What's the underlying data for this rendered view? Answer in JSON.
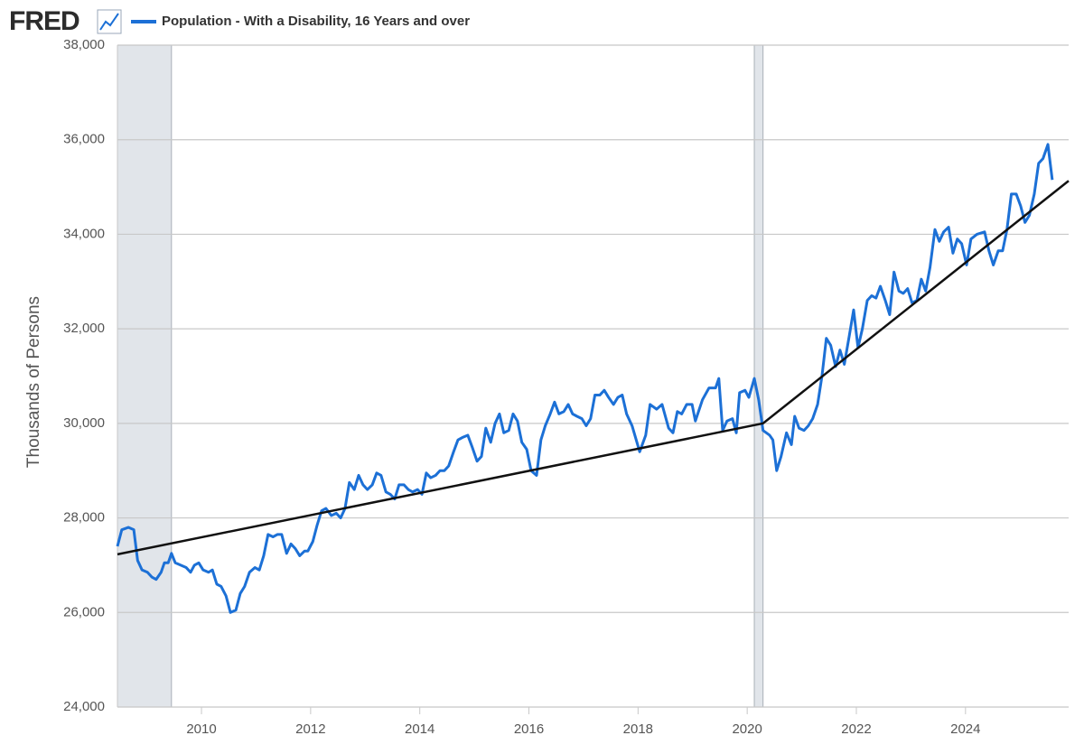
{
  "chart_data": {
    "type": "line",
    "logo": "FRED",
    "y_label": "Thousands of Persons",
    "xlim": [
      2008.46,
      2025.89
    ],
    "xticks": [
      2010,
      2012,
      2014,
      2016,
      2018,
      2020,
      2022,
      2024
    ],
    "ylim": [
      24000,
      38000
    ],
    "yticks": [
      {
        "value": 24000,
        "label": "24,000"
      },
      {
        "value": 26000,
        "label": "26,000"
      },
      {
        "value": 28000,
        "label": "28,000"
      },
      {
        "value": 30000,
        "label": "30,000"
      },
      {
        "value": 32000,
        "label": "32,000"
      },
      {
        "value": 34000,
        "label": "34,000"
      },
      {
        "value": 36000,
        "label": "36,000"
      },
      {
        "value": 38000,
        "label": "38,000"
      }
    ],
    "grid": true,
    "recessions": [
      [
        2007.92,
        2009.45
      ],
      [
        2020.13,
        2020.29
      ]
    ],
    "recession_color": "#e1e5ea",
    "series": [
      {
        "name": "Population - With a Disability, 16 Years and over",
        "color": "#1c70d6",
        "x": [
          2008.46,
          2008.54,
          2008.66,
          2008.76,
          2008.83,
          2008.91,
          2009.01,
          2009.09,
          2009.17,
          2009.26,
          2009.32,
          2009.39,
          2009.45,
          2009.52,
          2009.62,
          2009.72,
          2009.8,
          2009.87,
          2009.95,
          2010.03,
          2010.13,
          2010.2,
          2010.28,
          2010.36,
          2010.45,
          2010.53,
          2010.63,
          2010.71,
          2010.79,
          2010.88,
          2010.98,
          2011.06,
          2011.14,
          2011.22,
          2011.31,
          2011.39,
          2011.47,
          2011.56,
          2011.64,
          2011.72,
          2011.8,
          2011.89,
          2011.95,
          2012.04,
          2012.12,
          2012.2,
          2012.28,
          2012.38,
          2012.47,
          2012.55,
          2012.63,
          2012.71,
          2012.8,
          2012.88,
          2012.96,
          2013.04,
          2013.13,
          2013.21,
          2013.29,
          2013.38,
          2013.46,
          2013.54,
          2013.62,
          2013.71,
          2013.79,
          2013.87,
          2013.96,
          2014.04,
          2014.12,
          2014.2,
          2014.29,
          2014.37,
          2014.45,
          2014.53,
          2014.62,
          2014.7,
          2014.78,
          2014.88,
          2014.96,
          2015.05,
          2015.13,
          2015.21,
          2015.3,
          2015.38,
          2015.46,
          2015.54,
          2015.63,
          2015.71,
          2015.79,
          2015.87,
          2015.96,
          2016.04,
          2016.14,
          2016.22,
          2016.3,
          2016.39,
          2016.47,
          2016.55,
          2016.64,
          2016.72,
          2016.8,
          2016.88,
          2016.97,
          2017.05,
          2017.13,
          2017.21,
          2017.3,
          2017.38,
          2017.46,
          2017.55,
          2017.63,
          2017.71,
          2017.79,
          2017.89,
          2018.03,
          2018.14,
          2018.22,
          2018.34,
          2018.44,
          2018.56,
          2018.64,
          2018.72,
          2018.8,
          2018.89,
          2018.99,
          2019.05,
          2019.18,
          2019.3,
          2019.42,
          2019.48,
          2019.55,
          2019.63,
          2019.73,
          2019.8,
          2019.86,
          2019.96,
          2020.03,
          2020.13,
          2020.21,
          2020.29,
          2020.41,
          2020.47,
          2020.54,
          2020.62,
          2020.72,
          2020.81,
          2020.87,
          2020.95,
          2021.04,
          2021.12,
          2021.2,
          2021.29,
          2021.37,
          2021.45,
          2021.53,
          2021.62,
          2021.7,
          2021.78,
          2021.87,
          2021.95,
          2022.03,
          2022.11,
          2022.2,
          2022.28,
          2022.36,
          2022.44,
          2022.53,
          2022.61,
          2022.69,
          2022.78,
          2022.86,
          2022.94,
          2023.02,
          2023.11,
          2023.19,
          2023.27,
          2023.35,
          2023.44,
          2023.52,
          2023.6,
          2023.69,
          2023.77,
          2023.85,
          2023.93,
          2024.02,
          2024.1,
          2024.21,
          2024.35,
          2024.43,
          2024.51,
          2024.6,
          2024.68,
          2024.76,
          2024.84,
          2024.93,
          2025.01,
          2025.09,
          2025.17,
          2025.26,
          2025.34,
          2025.42,
          2025.51,
          2025.59
        ],
        "values": [
          27400,
          27750,
          27800,
          27750,
          27100,
          26900,
          26850,
          26750,
          26700,
          26850,
          27050,
          27050,
          27250,
          27050,
          27000,
          26950,
          26850,
          27000,
          27050,
          26900,
          26850,
          26900,
          26600,
          26550,
          26350,
          26000,
          26050,
          26400,
          26550,
          26850,
          26950,
          26900,
          27200,
          27650,
          27600,
          27650,
          27650,
          27250,
          27450,
          27350,
          27200,
          27300,
          27300,
          27500,
          27850,
          28150,
          28200,
          28050,
          28100,
          28000,
          28200,
          28750,
          28600,
          28900,
          28700,
          28600,
          28700,
          28950,
          28900,
          28550,
          28500,
          28400,
          28700,
          28700,
          28600,
          28550,
          28600,
          28500,
          28950,
          28850,
          28900,
          29000,
          29000,
          29100,
          29400,
          29650,
          29700,
          29750,
          29500,
          29200,
          29300,
          29900,
          29600,
          30000,
          30200,
          29800,
          29850,
          30200,
          30050,
          29600,
          29450,
          29000,
          28900,
          29650,
          29950,
          30200,
          30450,
          30200,
          30250,
          30400,
          30200,
          30150,
          30100,
          29950,
          30100,
          30600,
          30600,
          30700,
          30550,
          30400,
          30550,
          30600,
          30200,
          29950,
          29400,
          29750,
          30400,
          30300,
          30400,
          29900,
          29800,
          30250,
          30200,
          30400,
          30400,
          30050,
          30500,
          30750,
          30750,
          30950,
          29850,
          30050,
          30100,
          29800,
          30650,
          30700,
          30550,
          30950,
          30500,
          29850,
          29750,
          29650,
          29000,
          29300,
          29800,
          29550,
          30150,
          29900,
          29850,
          29950,
          30100,
          30400,
          31000,
          31800,
          31650,
          31200,
          31550,
          31250,
          31850,
          32400,
          31600,
          32000,
          32600,
          32700,
          32650,
          32900,
          32600,
          32300,
          33200,
          32800,
          32750,
          32850,
          32550,
          32600,
          33050,
          32800,
          33300,
          34100,
          33850,
          34050,
          34150,
          33600,
          33900,
          33800,
          33350,
          33900,
          34000,
          34050,
          33650,
          33350,
          33650,
          33650,
          34100,
          34850,
          34850,
          34600,
          34250,
          34400,
          34850,
          35500,
          35600,
          35900,
          35150
        ]
      }
    ],
    "trend_line": {
      "color": "#111111",
      "x": [
        2008.46,
        2020.29,
        2025.89
      ],
      "values": [
        27230,
        30000,
        35130
      ]
    }
  }
}
